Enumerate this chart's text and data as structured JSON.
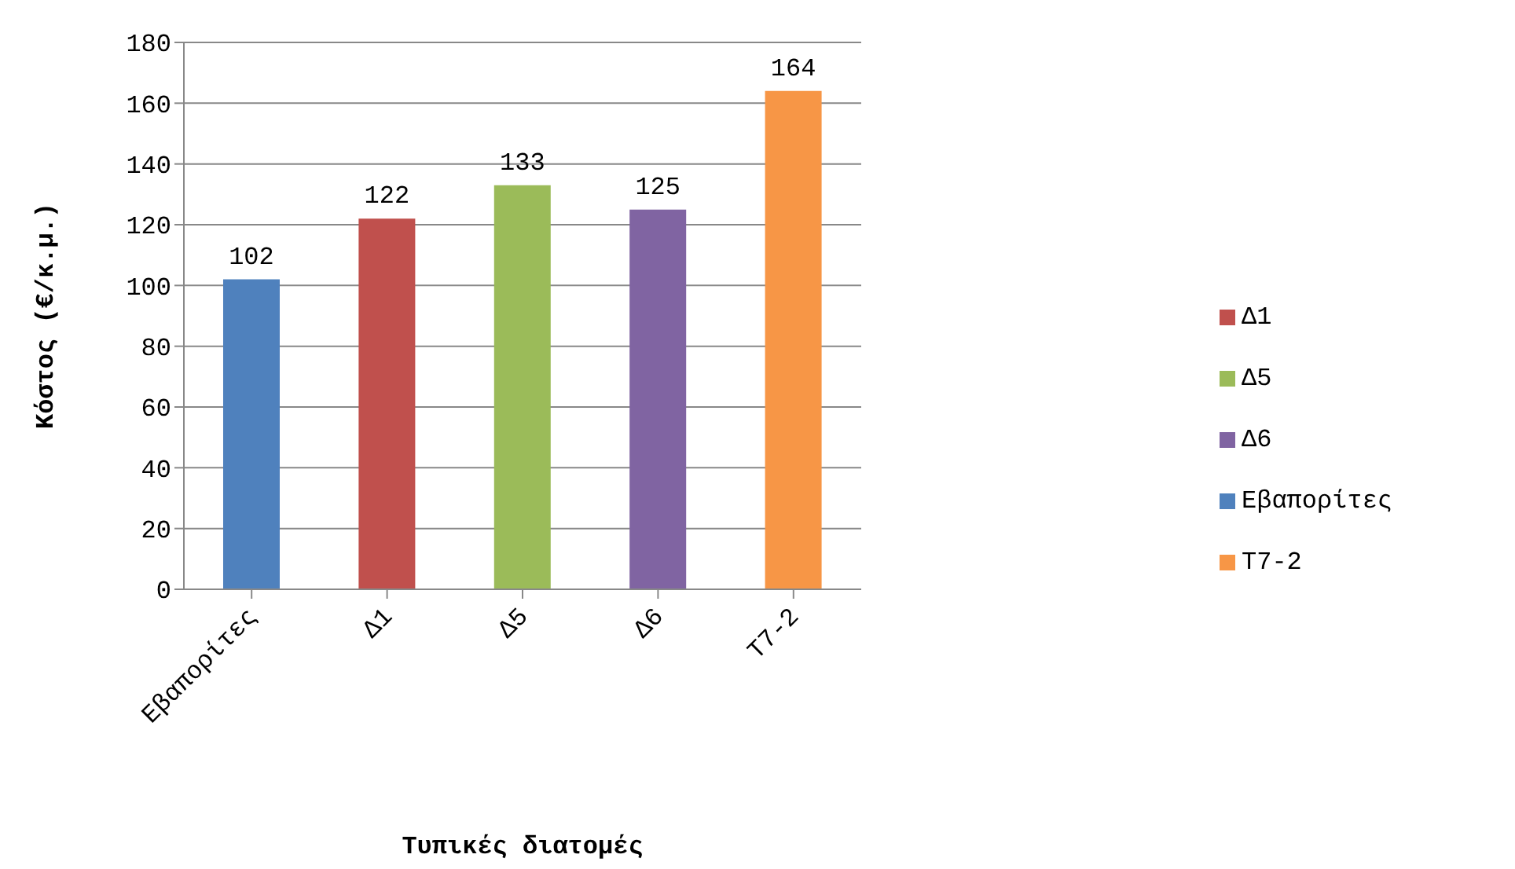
{
  "chart_data": {
    "type": "bar",
    "xlabel": "Τυπικές διατομές",
    "ylabel": "Κόστος (€/κ.μ.)",
    "categories": [
      "Εβαπορίτες",
      "Δ1",
      "Δ5",
      "Δ6",
      "Τ7-2"
    ],
    "series": [
      {
        "name": "Εβαπορίτες",
        "color": "#4f81bd",
        "values": [
          102,
          null,
          null,
          null,
          null
        ]
      },
      {
        "name": "Δ1",
        "color": "#c0504d",
        "values": [
          null,
          122,
          null,
          null,
          null
        ]
      },
      {
        "name": "Δ5",
        "color": "#9bbb59",
        "values": [
          null,
          null,
          133,
          null,
          null
        ]
      },
      {
        "name": "Δ6",
        "color": "#8064a2",
        "values": [
          null,
          null,
          null,
          125,
          null
        ]
      },
      {
        "name": "Τ7-2",
        "color": "#f79646",
        "values": [
          null,
          null,
          null,
          null,
          164
        ]
      }
    ],
    "stacked": true,
    "ylim": [
      0,
      180
    ],
    "yticks": [
      0,
      20,
      40,
      60,
      80,
      100,
      120,
      140,
      160,
      180
    ],
    "grid": "y",
    "legend": "right",
    "data_labels": true
  }
}
